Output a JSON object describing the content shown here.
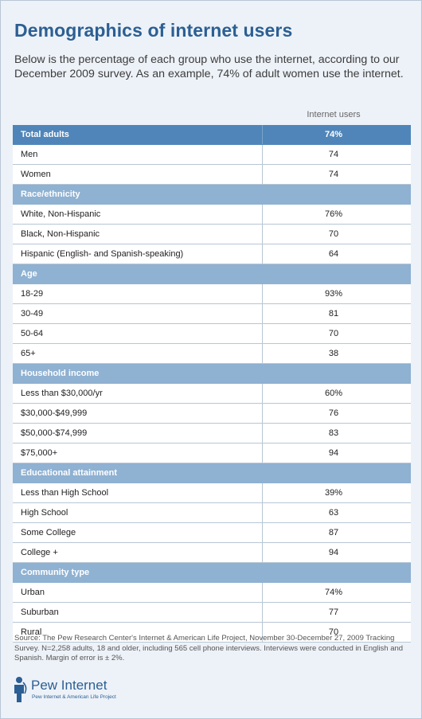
{
  "chart_data": {
    "type": "table",
    "title": "Demographics of internet users",
    "subtitle": "Below is the percentage of each group who use the internet, according to our December 2009 survey. As an example, 74% of adult women use the internet.",
    "column_header": "Internet users",
    "rows": [
      {
        "kind": "total",
        "label": "Total adults",
        "value": "74%"
      },
      {
        "kind": "item",
        "label": "Men",
        "value": "74"
      },
      {
        "kind": "item",
        "label": "Women",
        "value": "74"
      },
      {
        "kind": "group",
        "label": "Race/ethnicity",
        "value": ""
      },
      {
        "kind": "item",
        "label": "White, Non-Hispanic",
        "value": "76%"
      },
      {
        "kind": "item",
        "label": "Black, Non-Hispanic",
        "value": "70"
      },
      {
        "kind": "item",
        "label": "Hispanic (English- and Spanish-speaking)",
        "value": "64"
      },
      {
        "kind": "group",
        "label": "Age",
        "value": ""
      },
      {
        "kind": "item",
        "label": "18-29",
        "value": "93%"
      },
      {
        "kind": "item",
        "label": "30-49",
        "value": "81"
      },
      {
        "kind": "item",
        "label": "50-64",
        "value": "70"
      },
      {
        "kind": "item",
        "label": "65+",
        "value": "38"
      },
      {
        "kind": "group",
        "label": "Household income",
        "value": ""
      },
      {
        "kind": "item",
        "label": "Less than $30,000/yr",
        "value": "60%"
      },
      {
        "kind": "item",
        "label": "$30,000-$49,999",
        "value": "76"
      },
      {
        "kind": "item",
        "label": "$50,000-$74,999",
        "value": "83"
      },
      {
        "kind": "item",
        "label": "$75,000+",
        "value": "94"
      },
      {
        "kind": "group",
        "label": "Educational attainment",
        "value": ""
      },
      {
        "kind": "item",
        "label": "Less than High School",
        "value": "39%"
      },
      {
        "kind": "item",
        "label": "High School",
        "value": "63"
      },
      {
        "kind": "item",
        "label": "Some College",
        "value": "87"
      },
      {
        "kind": "item",
        "label": "College +",
        "value": "94"
      },
      {
        "kind": "group",
        "label": "Community type",
        "value": ""
      },
      {
        "kind": "item",
        "label": "Urban",
        "value": "74%"
      },
      {
        "kind": "item",
        "label": "Suburban",
        "value": "77"
      },
      {
        "kind": "item",
        "label": "Rural",
        "value": "70"
      }
    ],
    "footnote": "Source: The Pew Research Center's Internet & American Life Project, November 30-December 27, 2009 Tracking Survey. N=2,258 adults, 18 and older, including 565 cell phone interviews. Interviews were conducted in English and Spanish. Margin of error is ± 2%."
  },
  "logo": {
    "brand": "Pew Internet",
    "tagline": "Pew Internet & American Life Project"
  },
  "colors": {
    "title": "#2c5f93",
    "total_row": "#5085b9",
    "group_row": "#8fb1d2",
    "background": "#edf2f8"
  }
}
